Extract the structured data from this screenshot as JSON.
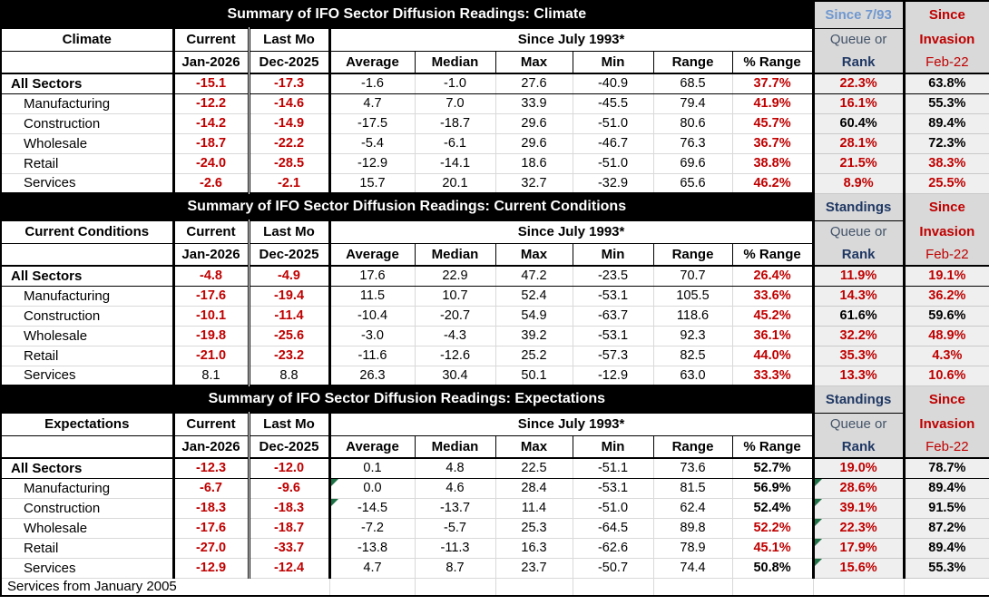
{
  "footer_note": "Services from January 2005",
  "colors": {
    "negative_red": "#C00000",
    "header_light_blue": "#6F97CF",
    "header_navy": "#1F3864",
    "header_slate": "#44546A",
    "comment_flag_green": "#1E7145",
    "header_gray": "#D9D9D9",
    "standings_column_gray": "#EFEFEF",
    "title_bar_black": "#000000"
  },
  "columns": {
    "current_header": "Current",
    "lastmo_header": "Last Mo",
    "since_span_header": "Since July 1993*",
    "current_sub": "Jan-2026",
    "lastmo_sub": "Dec-2025",
    "stats": [
      "Average",
      "Median",
      "Max",
      "Min",
      "Range",
      "% Range"
    ],
    "queue_line1": "Queue or",
    "queue_line2": "Rank",
    "since_line1": "Since",
    "since_line2": "Invasion",
    "since_line3": "Feb-22"
  },
  "sections": [
    {
      "title": "Summary of IFO Sector Diffusion Readings: Climate",
      "standings_label": "Since 7/93",
      "standings_style": "lightblue",
      "row_label_header": "Climate",
      "rows": [
        {
          "label": "All Sectors",
          "emphasis": true,
          "current": "-15.1",
          "current_red": true,
          "last": "-17.3",
          "last_red": true,
          "avg": "-1.6",
          "avg_flag": false,
          "med": "-1.0",
          "max": "27.6",
          "min": "-40.9",
          "range": "68.5",
          "pct": "37.7%",
          "pct_red": true,
          "queue": "22.3%",
          "queue_red": true,
          "queue_flag": false,
          "inv": "63.8%",
          "inv_red": false
        },
        {
          "label": "Manufacturing",
          "emphasis": false,
          "current": "-12.2",
          "current_red": true,
          "last": "-14.6",
          "last_red": true,
          "avg": "4.7",
          "avg_flag": false,
          "med": "7.0",
          "max": "33.9",
          "min": "-45.5",
          "range": "79.4",
          "pct": "41.9%",
          "pct_red": true,
          "queue": "16.1%",
          "queue_red": true,
          "queue_flag": false,
          "inv": "55.3%",
          "inv_red": false
        },
        {
          "label": "Construction",
          "emphasis": false,
          "current": "-14.2",
          "current_red": true,
          "last": "-14.9",
          "last_red": true,
          "avg": "-17.5",
          "avg_flag": false,
          "med": "-18.7",
          "max": "29.6",
          "min": "-51.0",
          "range": "80.6",
          "pct": "45.7%",
          "pct_red": true,
          "queue": "60.4%",
          "queue_red": false,
          "queue_flag": false,
          "inv": "89.4%",
          "inv_red": false
        },
        {
          "label": "Wholesale",
          "emphasis": false,
          "current": "-18.7",
          "current_red": true,
          "last": "-22.2",
          "last_red": true,
          "avg": "-5.4",
          "avg_flag": false,
          "med": "-6.1",
          "max": "29.6",
          "min": "-46.7",
          "range": "76.3",
          "pct": "36.7%",
          "pct_red": true,
          "queue": "28.1%",
          "queue_red": true,
          "queue_flag": false,
          "inv": "72.3%",
          "inv_red": false
        },
        {
          "label": "Retail",
          "emphasis": false,
          "current": "-24.0",
          "current_red": true,
          "last": "-28.5",
          "last_red": true,
          "avg": "-12.9",
          "avg_flag": false,
          "med": "-14.1",
          "max": "18.6",
          "min": "-51.0",
          "range": "69.6",
          "pct": "38.8%",
          "pct_red": true,
          "queue": "21.5%",
          "queue_red": true,
          "queue_flag": false,
          "inv": "38.3%",
          "inv_red": true
        },
        {
          "label": "Services",
          "emphasis": false,
          "current": "-2.6",
          "current_red": true,
          "last": "-2.1",
          "last_red": true,
          "avg": "15.7",
          "avg_flag": false,
          "med": "20.1",
          "max": "32.7",
          "min": "-32.9",
          "range": "65.6",
          "pct": "46.2%",
          "pct_red": true,
          "queue": "8.9%",
          "queue_red": true,
          "queue_flag": false,
          "inv": "25.5%",
          "inv_red": true
        }
      ]
    },
    {
      "title": "Summary of IFO Sector Diffusion Readings: Current Conditions",
      "standings_label": "Standings",
      "standings_style": "navy",
      "row_label_header": "Current Conditions",
      "rows": [
        {
          "label": "All Sectors",
          "emphasis": true,
          "current": "-4.8",
          "current_red": true,
          "last": "-4.9",
          "last_red": true,
          "avg": "17.6",
          "avg_flag": false,
          "med": "22.9",
          "max": "47.2",
          "min": "-23.5",
          "range": "70.7",
          "pct": "26.4%",
          "pct_red": true,
          "queue": "11.9%",
          "queue_red": true,
          "queue_flag": false,
          "inv": "19.1%",
          "inv_red": true
        },
        {
          "label": "Manufacturing",
          "emphasis": false,
          "current": "-17.6",
          "current_red": true,
          "last": "-19.4",
          "last_red": true,
          "avg": "11.5",
          "avg_flag": false,
          "med": "10.7",
          "max": "52.4",
          "min": "-53.1",
          "range": "105.5",
          "pct": "33.6%",
          "pct_red": true,
          "queue": "14.3%",
          "queue_red": true,
          "queue_flag": false,
          "inv": "36.2%",
          "inv_red": true
        },
        {
          "label": "Construction",
          "emphasis": false,
          "current": "-10.1",
          "current_red": true,
          "last": "-11.4",
          "last_red": true,
          "avg": "-10.4",
          "avg_flag": false,
          "med": "-20.7",
          "max": "54.9",
          "min": "-63.7",
          "range": "118.6",
          "pct": "45.2%",
          "pct_red": true,
          "queue": "61.6%",
          "queue_red": false,
          "queue_flag": false,
          "inv": "59.6%",
          "inv_red": false
        },
        {
          "label": "Wholesale",
          "emphasis": false,
          "current": "-19.8",
          "current_red": true,
          "last": "-25.6",
          "last_red": true,
          "avg": "-3.0",
          "avg_flag": false,
          "med": "-4.3",
          "max": "39.2",
          "min": "-53.1",
          "range": "92.3",
          "pct": "36.1%",
          "pct_red": true,
          "queue": "32.2%",
          "queue_red": true,
          "queue_flag": false,
          "inv": "48.9%",
          "inv_red": true
        },
        {
          "label": "Retail",
          "emphasis": false,
          "current": "-21.0",
          "current_red": true,
          "last": "-23.2",
          "last_red": true,
          "avg": "-11.6",
          "avg_flag": false,
          "med": "-12.6",
          "max": "25.2",
          "min": "-57.3",
          "range": "82.5",
          "pct": "44.0%",
          "pct_red": true,
          "queue": "35.3%",
          "queue_red": true,
          "queue_flag": false,
          "inv": "4.3%",
          "inv_red": true
        },
        {
          "label": "Services",
          "emphasis": false,
          "current": "8.1",
          "current_red": false,
          "last": "8.8",
          "last_red": false,
          "avg": "26.3",
          "avg_flag": false,
          "med": "30.4",
          "max": "50.1",
          "min": "-12.9",
          "range": "63.0",
          "pct": "33.3%",
          "pct_red": true,
          "queue": "13.3%",
          "queue_red": true,
          "queue_flag": false,
          "inv": "10.6%",
          "inv_red": true
        }
      ]
    },
    {
      "title": "Summary of IFO Sector Diffusion Readings: Expectations",
      "standings_label": "Standings",
      "standings_style": "navy",
      "row_label_header": "Expectations",
      "rows": [
        {
          "label": "All Sectors",
          "emphasis": true,
          "current": "-12.3",
          "current_red": true,
          "last": "-12.0",
          "last_red": true,
          "avg": "0.1",
          "avg_flag": false,
          "med": "4.8",
          "max": "22.5",
          "min": "-51.1",
          "range": "73.6",
          "pct": "52.7%",
          "pct_red": false,
          "queue": "19.0%",
          "queue_red": true,
          "queue_flag": false,
          "inv": "78.7%",
          "inv_red": false
        },
        {
          "label": "Manufacturing",
          "emphasis": false,
          "current": "-6.7",
          "current_red": true,
          "last": "-9.6",
          "last_red": true,
          "avg": "0.0",
          "avg_flag": true,
          "med": "4.6",
          "max": "28.4",
          "min": "-53.1",
          "range": "81.5",
          "pct": "56.9%",
          "pct_red": false,
          "queue": "28.6%",
          "queue_red": true,
          "queue_flag": true,
          "inv": "89.4%",
          "inv_red": false
        },
        {
          "label": "Construction",
          "emphasis": false,
          "current": "-18.3",
          "current_red": true,
          "last": "-18.3",
          "last_red": true,
          "avg": "-14.5",
          "avg_flag": true,
          "med": "-13.7",
          "max": "11.4",
          "min": "-51.0",
          "range": "62.4",
          "pct": "52.4%",
          "pct_red": false,
          "queue": "39.1%",
          "queue_red": true,
          "queue_flag": true,
          "inv": "91.5%",
          "inv_red": false
        },
        {
          "label": "Wholesale",
          "emphasis": false,
          "current": "-17.6",
          "current_red": true,
          "last": "-18.7",
          "last_red": true,
          "avg": "-7.2",
          "avg_flag": false,
          "med": "-5.7",
          "max": "25.3",
          "min": "-64.5",
          "range": "89.8",
          "pct": "52.2%",
          "pct_red": true,
          "queue": "22.3%",
          "queue_red": true,
          "queue_flag": true,
          "inv": "87.2%",
          "inv_red": false
        },
        {
          "label": "Retail",
          "emphasis": false,
          "current": "-27.0",
          "current_red": true,
          "last": "-33.7",
          "last_red": true,
          "avg": "-13.8",
          "avg_flag": false,
          "med": "-11.3",
          "max": "16.3",
          "min": "-62.6",
          "range": "78.9",
          "pct": "45.1%",
          "pct_red": true,
          "queue": "17.9%",
          "queue_red": true,
          "queue_flag": true,
          "inv": "89.4%",
          "inv_red": false
        },
        {
          "label": "Services",
          "emphasis": false,
          "current": "-12.9",
          "current_red": true,
          "last": "-12.4",
          "last_red": true,
          "avg": "4.7",
          "avg_flag": false,
          "med": "8.7",
          "max": "23.7",
          "min": "-50.7",
          "range": "74.4",
          "pct": "50.8%",
          "pct_red": false,
          "queue": "15.6%",
          "queue_red": true,
          "queue_flag": true,
          "inv": "55.3%",
          "inv_red": false
        }
      ]
    }
  ]
}
